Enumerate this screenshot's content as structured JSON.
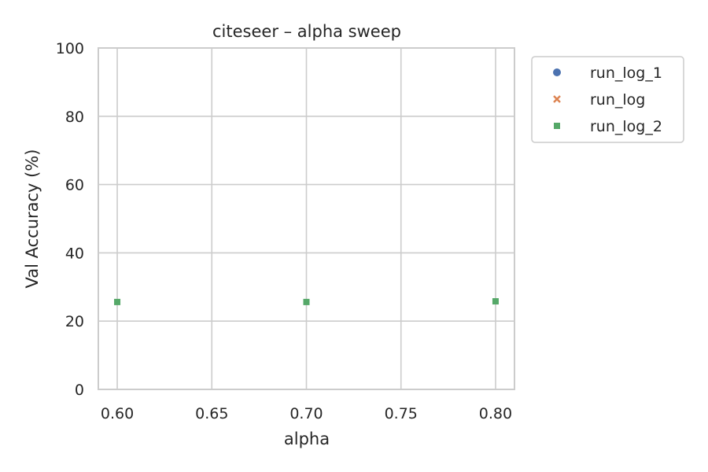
{
  "chart_data": {
    "type": "scatter",
    "title": "citeseer – alpha sweep",
    "xlabel": "alpha",
    "ylabel": "Val Accuracy (%)",
    "xlim": [
      0.59,
      0.81
    ],
    "ylim": [
      0,
      100
    ],
    "xticks": [
      0.6,
      0.65,
      0.7,
      0.75,
      0.8
    ],
    "xtick_labels": [
      "0.60",
      "0.65",
      "0.70",
      "0.75",
      "0.80"
    ],
    "yticks": [
      0,
      20,
      40,
      60,
      80,
      100
    ],
    "ytick_labels": [
      "0",
      "20",
      "40",
      "60",
      "80",
      "100"
    ],
    "grid": true,
    "legend_position": "outside-top-right",
    "series": [
      {
        "name": "run_log_1",
        "marker": "circle",
        "color": "#4c72b0",
        "x": [],
        "y": []
      },
      {
        "name": "run_log",
        "marker": "x",
        "color": "#dd8452",
        "x": [],
        "y": []
      },
      {
        "name": "run_log_2",
        "marker": "square",
        "color": "#55a868",
        "x": [
          0.6,
          0.7,
          0.8
        ],
        "y": [
          25.6,
          25.6,
          25.8
        ]
      }
    ]
  }
}
